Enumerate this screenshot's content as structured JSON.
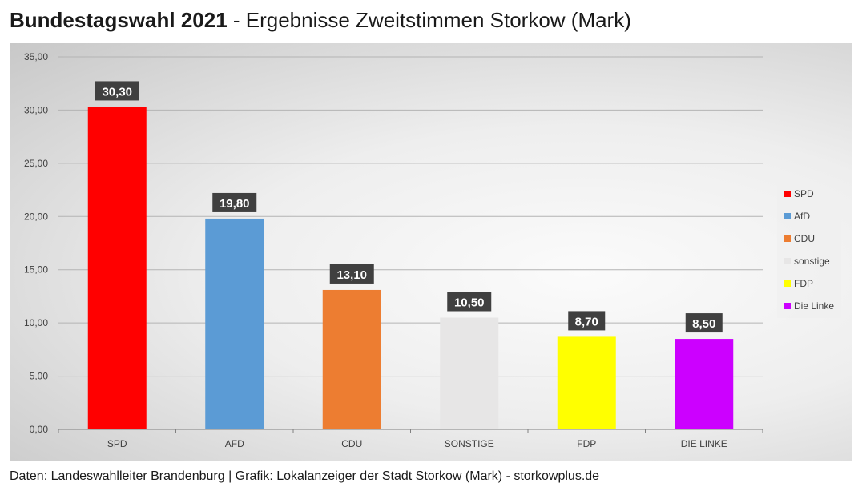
{
  "header": {
    "title_main": "Bundestagswahl 2021",
    "title_sub": " - Ergebnisse Zweitstimmen Storkow (Mark)"
  },
  "chart_data": {
    "type": "bar",
    "categories": [
      "SPD",
      "AFD",
      "CDU",
      "SONSTIGE",
      "FDP",
      "DIE LINKE"
    ],
    "values": [
      30.3,
      19.8,
      13.1,
      10.5,
      8.7,
      8.5
    ],
    "value_labels": [
      "30,30",
      "19,80",
      "13,10",
      "10,50",
      "8,70",
      "8,50"
    ],
    "colors": [
      "#ff0000",
      "#5b9bd5",
      "#ed7d31",
      "#e7e6e6",
      "#ffff00",
      "#cc00ff"
    ],
    "ylim": [
      0,
      35
    ],
    "yticks": [
      "0,00",
      "5,00",
      "10,00",
      "15,00",
      "20,00",
      "25,00",
      "30,00",
      "35,00"
    ],
    "grid": true,
    "legend_position": "right",
    "legend": [
      "SPD",
      "AfD",
      "CDU",
      "sonstige",
      "FDP",
      "Die Linke"
    ]
  },
  "footer": {
    "source": "Daten: Landeswahlleiter Brandenburg | Grafik: Lokalanzeiger der Stadt Storkow (Mark) - storkowplus.de"
  }
}
